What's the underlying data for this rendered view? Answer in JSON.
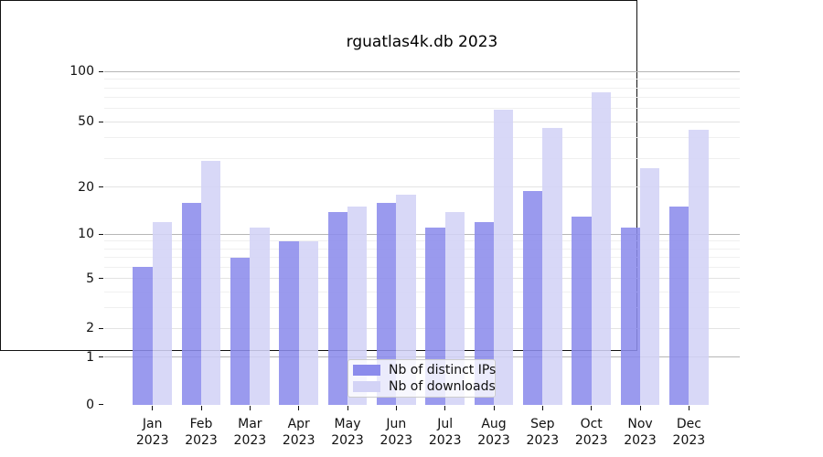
{
  "title": "rguatlas4k.db 2023",
  "chart_data": {
    "type": "bar",
    "title": "rguatlas4k.db 2023",
    "categories": [
      "Jan",
      "Feb",
      "Mar",
      "Apr",
      "May",
      "Jun",
      "Jul",
      "Aug",
      "Sep",
      "Oct",
      "Nov",
      "Dec"
    ],
    "x_sublabel": "2023",
    "series": [
      {
        "name": "Nb of distinct IPs",
        "color": "#8c8cec",
        "values": [
          6,
          16,
          7,
          9,
          14,
          16,
          11,
          12,
          19,
          13,
          11,
          15
        ]
      },
      {
        "name": "Nb of downloads",
        "color": "#d3d3f6",
        "values": [
          12,
          29,
          11,
          9,
          15,
          18,
          14,
          59,
          46,
          75,
          26,
          45
        ]
      }
    ],
    "y_axis": {
      "scale": "log1p-symlog",
      "major_ticks": [
        0,
        1,
        2,
        5,
        10,
        20,
        50,
        100
      ],
      "decade_ticks": [
        1,
        10,
        100
      ],
      "minor_ticks": [
        3,
        4,
        6,
        7,
        8,
        9,
        30,
        40,
        60,
        70,
        80,
        90
      ],
      "range_max": 125
    },
    "grid": true,
    "legend": {
      "position": "lower center",
      "entries": [
        "Nb of distinct IPs",
        "Nb of downloads"
      ]
    }
  }
}
